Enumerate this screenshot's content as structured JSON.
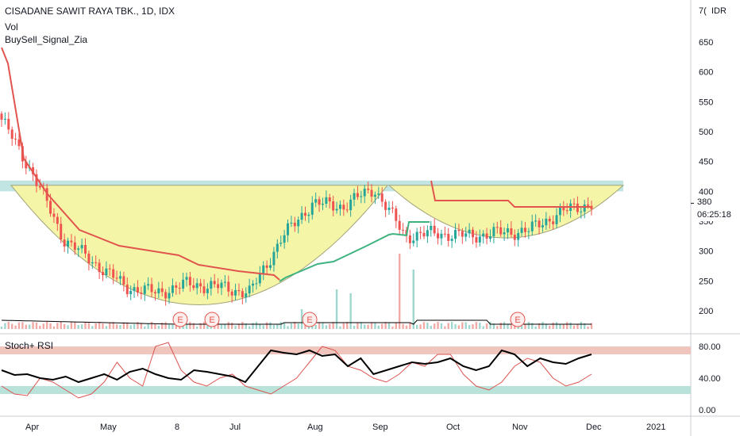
{
  "header": {
    "title": "CISADANE SAWIT RAYA TBK., 1D, IDX",
    "indicator_vol": "Vol",
    "indicator_signal": "BuySell_Signal_Zia",
    "currency": "IDR",
    "top_clipped_tick": "7("
  },
  "price_panel": {
    "last_price_label": "380",
    "countdown": "06:25:18",
    "y_ticks": [
      "650",
      "600",
      "550",
      "500",
      "450",
      "400",
      "350",
      "300",
      "250",
      "200"
    ],
    "earnings_marker": "E"
  },
  "stoch_panel": {
    "label": "Stoch+ RSI",
    "y_ticks": [
      "80.00",
      "40.00",
      "0.00"
    ]
  },
  "x_axis": {
    "labels": [
      "Apr",
      "May",
      "8",
      "Jul",
      "Aug",
      "Sep",
      "Oct",
      "Nov",
      "Dec",
      "2021"
    ]
  },
  "colors": {
    "up": "#26a69a",
    "down": "#ef5350",
    "cup_fill": "#f5f5a8",
    "resistance_band": "#b2dfdb",
    "stop_line_red": "#e0554e",
    "stop_line_green": "#3fb37f",
    "stoch_k": "#000000",
    "stoch_rsi": "#d9534f",
    "overbought_band": "#efc5bd",
    "oversold_band": "#b9e3da"
  },
  "chart_data": [
    {
      "type": "candlestick",
      "title": "CISADANE SAWIT RAYA TBK., 1D, IDX",
      "ylabel": "IDR",
      "ylim": [
        170,
        705
      ],
      "x_labels": [
        "Apr",
        "May",
        "8",
        "Jul",
        "Aug",
        "Sep",
        "Oct",
        "Nov",
        "Dec",
        "2021"
      ],
      "resistance_band": [
        400,
        418
      ],
      "cup_rim_price": 410,
      "cup_bottom_price": 210,
      "last_price": 380,
      "close_approx": [
        {
          "date": "Mar-27",
          "close": 520
        },
        {
          "date": "Apr-10",
          "close": 430
        },
        {
          "date": "Apr-24",
          "close": 320
        },
        {
          "date": "May-08",
          "close": 280
        },
        {
          "date": "May-22",
          "close": 240
        },
        {
          "date": "Jun-05",
          "close": 230
        },
        {
          "date": "Jun-19",
          "close": 245
        },
        {
          "date": "Jul-03",
          "close": 240
        },
        {
          "date": "Jul-17",
          "close": 230
        },
        {
          "date": "Jul-24",
          "close": 320
        },
        {
          "date": "Aug-07",
          "close": 380
        },
        {
          "date": "Aug-21",
          "close": 375
        },
        {
          "date": "Sep-04",
          "close": 405
        },
        {
          "date": "Sep-11",
          "close": 325
        },
        {
          "date": "Sep-25",
          "close": 330
        },
        {
          "date": "Oct-09",
          "close": 325
        },
        {
          "date": "Oct-23",
          "close": 330
        },
        {
          "date": "Nov-06",
          "close": 335
        },
        {
          "date": "Nov-20",
          "close": 365
        },
        {
          "date": "Nov-30",
          "close": 380
        }
      ],
      "earnings_events": 4
    },
    {
      "type": "line",
      "title": "Stoch+ RSI",
      "ylim": [
        0,
        100
      ],
      "y_ticks": [
        0,
        40,
        80
      ],
      "overbought_band": [
        70,
        80
      ],
      "oversold_band": [
        20,
        30
      ],
      "series": [
        {
          "values": [
            50,
            44,
            45,
            40,
            38,
            42,
            35,
            40,
            45,
            38,
            48,
            52,
            45,
            40,
            38,
            50,
            48,
            45,
            42,
            35,
            55,
            75,
            72,
            70,
            75,
            68,
            70,
            55,
            65,
            45,
            50,
            55,
            60,
            58,
            60,
            65,
            55,
            50,
            55,
            75,
            70,
            55,
            65,
            60,
            58,
            65,
            70
          ]
        },
        {
          "values": [
            30,
            20,
            18,
            40,
            35,
            25,
            15,
            20,
            35,
            60,
            40,
            30,
            80,
            85,
            50,
            35,
            30,
            40,
            45,
            30,
            25,
            20,
            30,
            40,
            60,
            80,
            75,
            55,
            50,
            40,
            35,
            45,
            60,
            55,
            70,
            70,
            45,
            30,
            25,
            35,
            55,
            65,
            60,
            40,
            30,
            35,
            45
          ]
        }
      ]
    }
  ]
}
